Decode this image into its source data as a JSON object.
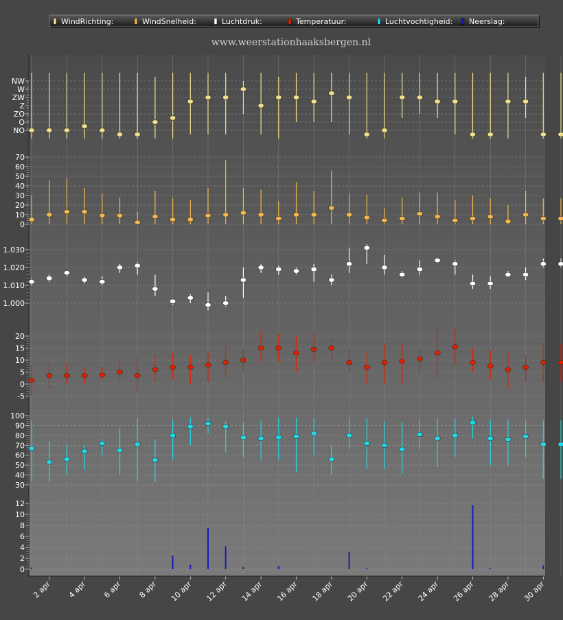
{
  "website": "www.weerstationhaaksbergen.nl",
  "legend": [
    {
      "label": "WindRichting:",
      "color": "#f0e08a"
    },
    {
      "label": "WindSnelheid:",
      "color": "#f3b74e"
    },
    {
      "label": "Luchtdruk:",
      "color": "#ffffff"
    },
    {
      "label": "Temperatuur:",
      "color": "#dd2200"
    },
    {
      "label": "Luchtvochtigheid:",
      "color": "#22d8e6"
    },
    {
      "label": "Neerslag:",
      "color": "#1a1ab8"
    }
  ],
  "x_labels": [
    "2 apr",
    "4 apr",
    "6 apr",
    "8 apr",
    "10 apr",
    "12 apr",
    "14 apr",
    "16 apr",
    "18 apr",
    "20 apr",
    "22 apr",
    "24 apr",
    "26 apr",
    "28 apr",
    "30 apr"
  ],
  "chart_data": [
    {
      "type": "scatter",
      "name": "WindRichting",
      "color": "#f0e08a",
      "y_categories": [
        "NO",
        "O",
        "ZO",
        "Z",
        "ZW",
        "W",
        "NW"
      ],
      "x": [
        1,
        2,
        3,
        4,
        5,
        6,
        7,
        8,
        9,
        10,
        11,
        12,
        13,
        14,
        15,
        16,
        17,
        18,
        19,
        20,
        21,
        22,
        23,
        24,
        25,
        26,
        27,
        28,
        29,
        30,
        31
      ],
      "values": [
        0,
        0,
        0,
        0.5,
        0,
        -0.5,
        -0.5,
        1,
        1.5,
        3.5,
        4,
        4,
        5,
        3,
        4,
        4,
        3.5,
        4.5,
        4,
        -0.5,
        0,
        4,
        4,
        3.5,
        3.5,
        -0.5,
        -0.5,
        3.5,
        3.5,
        -0.5,
        -0.5
      ],
      "low": [
        -1,
        -1,
        -1,
        -1,
        -1,
        -1,
        -1,
        -1,
        -1,
        -0.5,
        -0.5,
        -0.5,
        2,
        -0.5,
        -1,
        1,
        1,
        1,
        -0.5,
        -1,
        -1,
        1.5,
        2,
        1.5,
        -0.5,
        -1,
        -1,
        -1,
        1.5,
        -1,
        -1
      ],
      "high": [
        7,
        7,
        7,
        7,
        7,
        7,
        7,
        6.5,
        7,
        7,
        7,
        7,
        6,
        7,
        6.5,
        7,
        7,
        7,
        7,
        7,
        7,
        7,
        7,
        7,
        7,
        7,
        7,
        7,
        6.5,
        7,
        7
      ]
    },
    {
      "type": "scatter",
      "name": "WindSnelheid",
      "color": "#f3b74e",
      "y_ticks": [
        0,
        10,
        20,
        30,
        40,
        50,
        60,
        70
      ],
      "x": [
        1,
        2,
        3,
        4,
        5,
        6,
        7,
        8,
        9,
        10,
        11,
        12,
        13,
        14,
        15,
        16,
        17,
        18,
        19,
        20,
        21,
        22,
        23,
        24,
        25,
        26,
        27,
        28,
        29,
        30,
        31
      ],
      "values": [
        5,
        10,
        13,
        13,
        9,
        9,
        2,
        8,
        5,
        5,
        9,
        10,
        12,
        10,
        6,
        10,
        10,
        17,
        10,
        7,
        4,
        6,
        11,
        8,
        4,
        6,
        8,
        3,
        10,
        6,
        6
      ],
      "low": [
        0,
        0,
        0,
        0,
        0,
        0,
        0,
        0,
        0,
        0,
        0,
        0,
        0,
        0,
        0,
        0,
        0,
        0,
        0,
        0,
        0,
        0,
        0,
        0,
        0,
        0,
        0,
        0,
        0,
        0,
        0
      ],
      "high": [
        30,
        46,
        48,
        38,
        32,
        28,
        13,
        35,
        27,
        25,
        38,
        67,
        38,
        36,
        24,
        44,
        35,
        56,
        32,
        31,
        17,
        28,
        33,
        33,
        25,
        30,
        27,
        20,
        35,
        27,
        27
      ]
    },
    {
      "type": "scatter",
      "name": "Luchtdruk",
      "color": "#ffffff",
      "y_ticks": [
        1000,
        1010,
        1020,
        1030
      ],
      "y_tick_labels": [
        "1.000",
        "1.010",
        "1.020",
        "1.030"
      ],
      "x": [
        1,
        2,
        3,
        4,
        5,
        6,
        7,
        8,
        9,
        10,
        11,
        12,
        13,
        14,
        15,
        16,
        17,
        18,
        19,
        20,
        21,
        22,
        23,
        24,
        25,
        26,
        27,
        28,
        29,
        30,
        31
      ],
      "values": [
        1012,
        1014,
        1017,
        1013,
        1012,
        1020,
        1021,
        1008,
        1001,
        1003,
        999,
        1000,
        1013,
        1020,
        1019,
        1018,
        1019,
        1013,
        1022,
        1031,
        1020,
        1016,
        1019,
        1024,
        1022,
        1011,
        1011,
        1016,
        1016,
        1022,
        1022
      ],
      "low": [
        1010,
        1012,
        1015,
        1011,
        1010,
        1017,
        1016,
        1004,
        999,
        1000,
        996,
        998,
        1003,
        1017,
        1016,
        1016,
        1012,
        1010,
        1017,
        1022,
        1016,
        1015,
        1016,
        1023,
        1016,
        1008,
        1008,
        1015,
        1013,
        1020,
        1020
      ],
      "high": [
        1014,
        1016,
        1018,
        1015,
        1015,
        1022,
        1023,
        1016,
        1002,
        1005,
        1006,
        1004,
        1020,
        1022,
        1021,
        1020,
        1022,
        1016,
        1031,
        1033,
        1027,
        1018,
        1024,
        1025,
        1024,
        1016,
        1015,
        1018,
        1020,
        1025,
        1025
      ]
    },
    {
      "type": "scatter",
      "name": "Temperatuur",
      "color": "#dd2200",
      "y_ticks": [
        -5,
        0,
        5,
        10,
        15,
        20
      ],
      "x": [
        1,
        2,
        3,
        4,
        5,
        6,
        7,
        8,
        9,
        10,
        11,
        12,
        13,
        14,
        15,
        16,
        17,
        18,
        19,
        20,
        21,
        22,
        23,
        24,
        25,
        26,
        27,
        28,
        29,
        30,
        31
      ],
      "values": [
        1.5,
        3.5,
        3.5,
        3.5,
        3.8,
        5,
        3.5,
        6,
        7,
        7,
        8,
        9,
        10,
        15,
        15,
        13,
        14.5,
        15,
        9,
        7,
        9,
        9.5,
        10.5,
        13,
        15.5,
        9,
        7.5,
        6,
        7,
        9,
        9
      ],
      "low": [
        -5,
        -2,
        0,
        0,
        2,
        2,
        -3,
        1,
        2,
        0,
        1,
        3,
        5,
        9,
        9,
        5,
        9,
        10,
        5,
        0,
        0,
        0,
        4,
        3,
        8,
        5,
        2,
        -2,
        1,
        1,
        1
      ],
      "high": [
        8,
        9,
        9,
        7,
        7,
        10,
        11,
        12,
        13,
        12,
        13,
        16,
        15,
        22,
        21,
        20,
        21,
        19,
        15,
        13,
        17,
        17,
        15,
        23,
        23,
        15,
        14,
        13,
        12,
        17,
        17
      ]
    },
    {
      "type": "scatter",
      "name": "Luchtvochtigheid",
      "color": "#22d8e6",
      "y_ticks": [
        30,
        40,
        50,
        60,
        70,
        80,
        90,
        100
      ],
      "x": [
        1,
        2,
        3,
        4,
        5,
        6,
        7,
        8,
        9,
        10,
        11,
        12,
        13,
        14,
        15,
        16,
        17,
        18,
        19,
        20,
        21,
        22,
        23,
        24,
        25,
        26,
        27,
        28,
        29,
        30,
        31
      ],
      "values": [
        67,
        53,
        56,
        64,
        72,
        65,
        71,
        55,
        80,
        89,
        92,
        89,
        78,
        77,
        78,
        79,
        82,
        56,
        80,
        72,
        70,
        66,
        81,
        77,
        80,
        93,
        77,
        76,
        79,
        71,
        71
      ],
      "low": [
        34,
        33,
        40,
        45,
        60,
        40,
        34,
        33,
        55,
        70,
        82,
        63,
        58,
        55,
        56,
        43,
        60,
        40,
        66,
        46,
        46,
        41,
        66,
        48,
        58,
        77,
        50,
        50,
        58,
        36,
        36
      ],
      "high": [
        95,
        74,
        71,
        70,
        76,
        87,
        97,
        76,
        96,
        98,
        98,
        94,
        93,
        95,
        98,
        98,
        97,
        70,
        98,
        97,
        94,
        93,
        96,
        97,
        97,
        99,
        96,
        96,
        95,
        95,
        95
      ]
    },
    {
      "type": "bar",
      "name": "Neerslag",
      "color": "#1a1ab8",
      "y_ticks": [
        0,
        2,
        4,
        6,
        8,
        10,
        12
      ],
      "x": [
        1,
        9,
        10,
        11,
        12,
        13,
        15,
        19,
        20,
        26,
        27,
        30
      ],
      "values": [
        0.3,
        2.5,
        0.8,
        7.5,
        4.2,
        0.4,
        0.6,
        3.2,
        0.2,
        11.7,
        0.2,
        0.7
      ]
    }
  ]
}
